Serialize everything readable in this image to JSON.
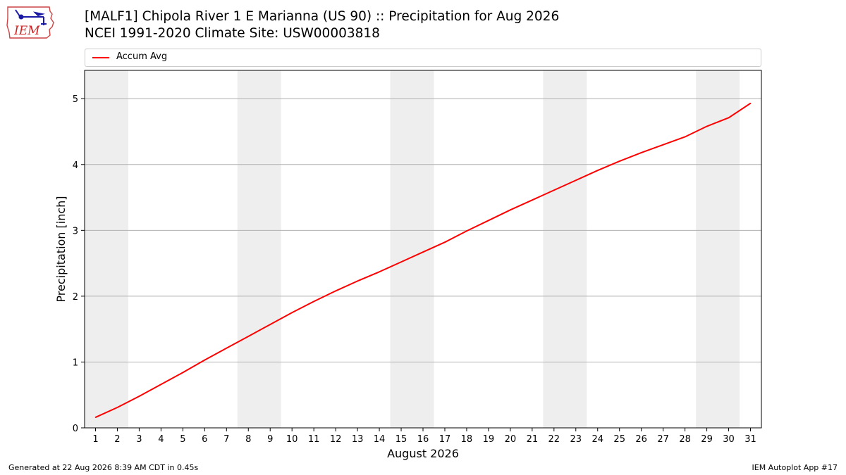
{
  "header": {
    "title_line1": "[MALF1] Chipola River 1 E Marianna (US 90) :: Precipitation for Aug 2026",
    "title_line2": "NCEI 1991-2020 Climate Site: USW00003818"
  },
  "logo": {
    "text": "IEM",
    "color": "#cc2222",
    "accent": "#1a1aa6"
  },
  "footer": {
    "left": "Generated at 22 Aug 2026 8:39 AM CDT in 0.45s",
    "right": "IEM Autoplot App #17"
  },
  "chart_data": {
    "type": "line",
    "title": "[MALF1] Chipola River 1 E Marianna (US 90) :: Precipitation for Aug 2026",
    "subtitle": "NCEI 1991-2020 Climate Site: USW00003818",
    "xlabel": "August 2026",
    "ylabel": "Precipitation [inch]",
    "xlim": [
      0.5,
      31.5
    ],
    "ylim": [
      0,
      5.43
    ],
    "x": [
      1,
      2,
      3,
      4,
      5,
      6,
      7,
      8,
      9,
      10,
      11,
      12,
      13,
      14,
      15,
      16,
      17,
      18,
      19,
      20,
      21,
      22,
      23,
      24,
      25,
      26,
      27,
      28,
      29,
      30,
      31
    ],
    "xticks": [
      "1",
      "2",
      "3",
      "4",
      "5",
      "6",
      "7",
      "8",
      "9",
      "10",
      "11",
      "12",
      "13",
      "14",
      "15",
      "16",
      "17",
      "18",
      "19",
      "20",
      "21",
      "22",
      "23",
      "24",
      "25",
      "26",
      "27",
      "28",
      "29",
      "30",
      "31"
    ],
    "yticks": [
      0,
      1,
      2,
      3,
      4,
      5
    ],
    "grid": "y",
    "legend": "top",
    "weekend_bands": [
      [
        1,
        2
      ],
      [
        8,
        9
      ],
      [
        15,
        16
      ],
      [
        22,
        23
      ],
      [
        29,
        30
      ]
    ],
    "band_color": "#eeeeee",
    "series": [
      {
        "name": "Accum Avg",
        "color": "#ff0000",
        "values": [
          0.16,
          0.31,
          0.48,
          0.66,
          0.84,
          1.03,
          1.21,
          1.39,
          1.57,
          1.75,
          1.92,
          2.08,
          2.23,
          2.37,
          2.52,
          2.67,
          2.82,
          2.99,
          3.15,
          3.31,
          3.46,
          3.61,
          3.76,
          3.91,
          4.05,
          4.18,
          4.3,
          4.42,
          4.58,
          4.71,
          4.93
        ]
      }
    ]
  }
}
